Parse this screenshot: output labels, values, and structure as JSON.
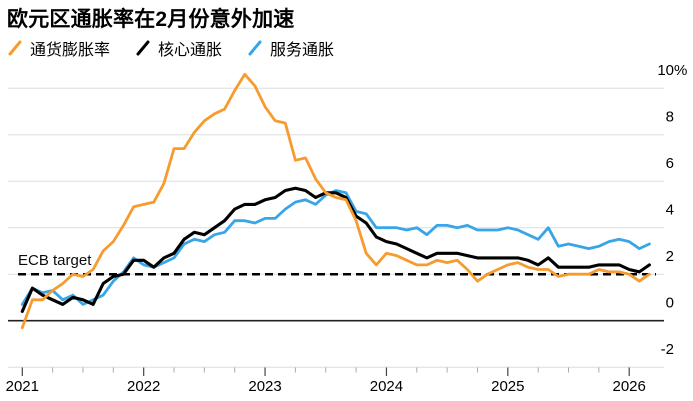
{
  "title": "欧元区通胀率在2月份意外加速",
  "legend": {
    "items": [
      {
        "label": "通货膨胀率",
        "color": "#F79B2E",
        "icon": "orange-slash-icon"
      },
      {
        "label": "核心通胀",
        "color": "#000000",
        "icon": "black-slash-icon"
      },
      {
        "label": "服务通胀",
        "color": "#38A5E8",
        "icon": "blue-slash-icon"
      }
    ]
  },
  "annotations": {
    "ecb_target_label": "ECB target",
    "ecb_target_value": 2
  },
  "colors": {
    "headline": "#F79B2E",
    "core": "#000000",
    "services": "#38A5E8",
    "gridline": "#DEDEDE",
    "zero_line": "#222222",
    "dashed_target": "#000000",
    "major_tick": "#444444",
    "minor_tick": "#AAAAAA",
    "axis_text": "#000000",
    "background": "#FFFFFF"
  },
  "chart_data": {
    "type": "line",
    "frequency": "monthly",
    "x_start_month": "2020-12",
    "x_end_month": "2026-02",
    "grid": "horizontal",
    "legend_position": "top-left",
    "ylim": [
      -2.6,
      10.9
    ],
    "yticks": [
      {
        "value": -2,
        "label": "-2",
        "suffix": ""
      },
      {
        "value": 0,
        "label": "0",
        "suffix": ""
      },
      {
        "value": 2,
        "label": "2",
        "suffix": ""
      },
      {
        "value": 4,
        "label": "4",
        "suffix": ""
      },
      {
        "value": 6,
        "label": "6",
        "suffix": ""
      },
      {
        "value": 8,
        "label": "8",
        "suffix": ""
      },
      {
        "value": 10,
        "label": "10",
        "suffix": "%"
      }
    ],
    "xticks": [
      "2021",
      "2022",
      "2023",
      "2024",
      "2025",
      "2026"
    ],
    "minor_xticks_per_year": 3,
    "reference_line": {
      "label": "ECB target",
      "value": 2,
      "style": "dashed"
    },
    "series": [
      {
        "name": "通货膨胀率",
        "color": "#F79B2E",
        "values": [
          -0.3,
          0.9,
          0.9,
          1.3,
          1.6,
          2.0,
          1.9,
          2.2,
          3.0,
          3.4,
          4.1,
          4.9,
          5.0,
          5.1,
          5.9,
          7.4,
          7.4,
          8.1,
          8.6,
          8.9,
          9.1,
          9.9,
          10.6,
          10.1,
          9.2,
          8.6,
          8.5,
          6.9,
          7.0,
          6.1,
          5.5,
          5.3,
          5.2,
          4.3,
          2.9,
          2.4,
          2.9,
          2.8,
          2.6,
          2.4,
          2.4,
          2.6,
          2.5,
          2.6,
          2.2,
          1.7,
          2.0,
          2.2,
          2.4,
          2.5,
          2.3,
          2.2,
          2.2,
          1.9,
          2.0,
          2.0,
          2.0,
          2.2,
          2.1,
          2.1,
          2.0,
          1.7,
          2.0
        ]
      },
      {
        "name": "核心通胀",
        "color": "#000000",
        "values": [
          0.4,
          1.4,
          1.1,
          0.9,
          0.7,
          1.0,
          0.9,
          0.7,
          1.6,
          1.9,
          2.0,
          2.6,
          2.6,
          2.3,
          2.7,
          2.9,
          3.5,
          3.8,
          3.7,
          4.0,
          4.3,
          4.8,
          5.0,
          5.0,
          5.2,
          5.3,
          5.6,
          5.7,
          5.6,
          5.3,
          5.5,
          5.5,
          5.3,
          4.5,
          4.2,
          3.6,
          3.4,
          3.3,
          3.1,
          2.9,
          2.7,
          2.9,
          2.9,
          2.9,
          2.8,
          2.7,
          2.7,
          2.7,
          2.7,
          2.7,
          2.6,
          2.4,
          2.7,
          2.3,
          2.3,
          2.3,
          2.3,
          2.4,
          2.4,
          2.4,
          2.2,
          2.1,
          2.4
        ]
      },
      {
        "name": "服务通胀",
        "color": "#38A5E8",
        "values": [
          0.7,
          1.4,
          1.2,
          1.3,
          0.9,
          1.1,
          0.7,
          0.9,
          1.1,
          1.7,
          2.1,
          2.7,
          2.4,
          2.3,
          2.5,
          2.7,
          3.3,
          3.5,
          3.4,
          3.7,
          3.8,
          4.3,
          4.3,
          4.2,
          4.4,
          4.4,
          4.8,
          5.1,
          5.2,
          5.0,
          5.4,
          5.6,
          5.5,
          4.7,
          4.6,
          4.0,
          4.0,
          4.0,
          3.9,
          4.0,
          3.7,
          4.1,
          4.1,
          4.0,
          4.1,
          3.9,
          3.9,
          3.9,
          4.0,
          3.9,
          3.7,
          3.5,
          4.0,
          3.2,
          3.3,
          3.2,
          3.1,
          3.2,
          3.4,
          3.5,
          3.4,
          3.1,
          3.3
        ]
      }
    ]
  }
}
